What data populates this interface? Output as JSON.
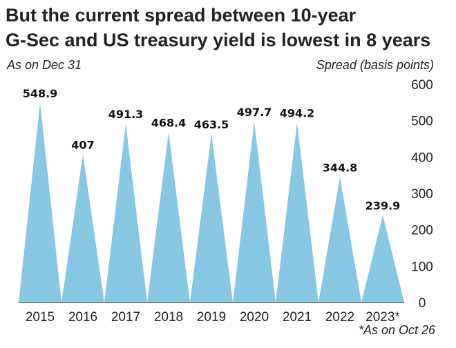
{
  "header": {
    "title_line1": "But the current spread between 10-year",
    "title_line2": "G-Sec and US treasury yield is lowest in 8 years",
    "subtitle": "As on Dec 31",
    "footnote": "*As on Oct 26"
  },
  "colors": {
    "peak_fill": "#87c8e4"
  },
  "chart_data": {
    "type": "area",
    "title": "But the current spread between 10-year G-Sec and US treasury yield is lowest in 8 years",
    "ylabel": "Spread (basis points)",
    "xlabel": "",
    "categories": [
      "2015",
      "2016",
      "2017",
      "2018",
      "2019",
      "2020",
      "2021",
      "2022",
      "2023*"
    ],
    "values": [
      548.9,
      407,
      491.3,
      468.4,
      463.5,
      497.7,
      494.2,
      344.8,
      239.9
    ],
    "value_labels": [
      "548.9",
      "407",
      "491.3",
      "468.4",
      "463.5",
      "497.7",
      "494.2",
      "344.8",
      "239.9"
    ],
    "ylim": [
      0,
      600
    ],
    "yticks": [
      0,
      100,
      200,
      300,
      400,
      500,
      600
    ],
    "ytick_labels": [
      "0",
      "100",
      "200",
      "300",
      "400",
      "500",
      "600"
    ],
    "y_axis_side": "right",
    "grid": false,
    "legend": false
  }
}
